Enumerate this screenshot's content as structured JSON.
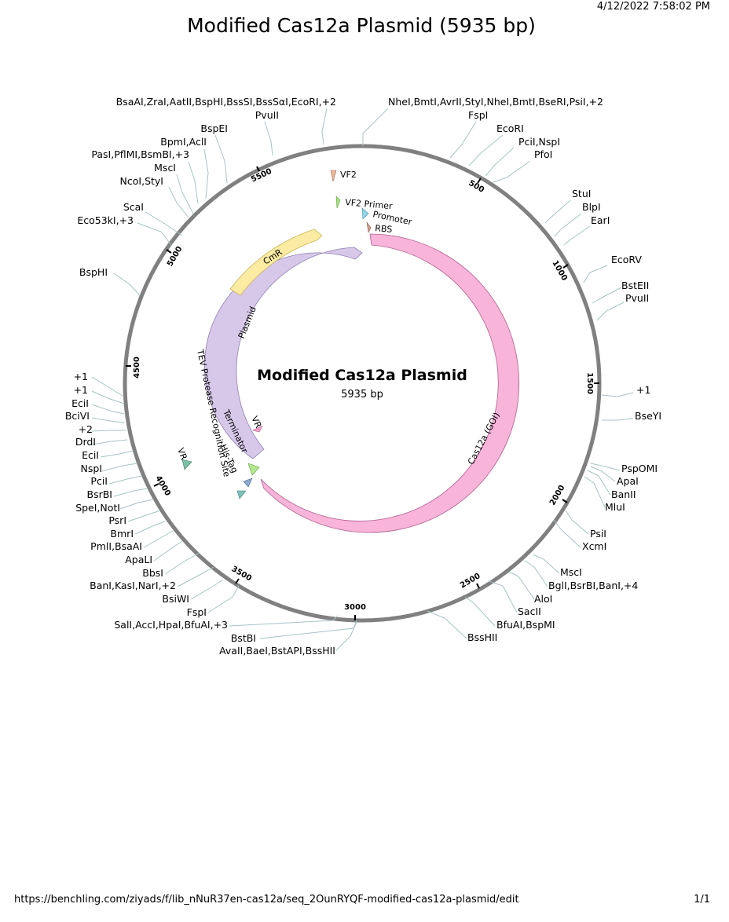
{
  "header": {
    "timestamp": "4/12/2022 7:58:02 PM",
    "title": "Modified Cas12a Plasmid (5935 bp)"
  },
  "footer": {
    "url": "https://benchling.com/ziyads/f/lib_nNuR37en-cas12a/seq_2OunRYQF-modified-cas12a-plasmid/edit",
    "page": "1/1"
  },
  "plasmid": {
    "name": "Modified Cas12a Plasmid",
    "length_label": "5935 bp",
    "length": 5935
  },
  "ticks": [
    "500",
    "1000",
    "1500",
    "2000",
    "2500",
    "3000",
    "3500",
    "4000",
    "4500",
    "5000",
    "5500"
  ],
  "features": [
    {
      "name": "Cas12a (GOI)",
      "color": "#f8b4d9",
      "stroke": "#b06090"
    },
    {
      "name": "Plasmid",
      "color": "#d7c8ea",
      "stroke": "#8f7fb0"
    },
    {
      "name": "CmR",
      "color": "#fbeba3",
      "stroke": "#c9b355"
    },
    {
      "name": "VF2",
      "color": "#e8b898"
    },
    {
      "name": "VF2 Primer",
      "color": "#a6e37e"
    },
    {
      "name": "Promoter",
      "color": "#8fd4e8"
    },
    {
      "name": "RBS",
      "color": "#d49a8c"
    },
    {
      "name": "VR",
      "color": "#f0a0c8"
    },
    {
      "name": "Terminator",
      "color": "#b4e88e"
    },
    {
      "name": "His-Tag",
      "color": "#8aa8d0"
    },
    {
      "name": "TEV Protease Recognition Site",
      "color": "#7cc0b8"
    },
    {
      "name": "VR",
      "color": "#7cc0a8"
    }
  ],
  "sites": [
    "BsaAI,ZraI,AatII,BspHI,BssSI,BssSαI,EcoRI,+2",
    "PvuII",
    "BspEI",
    "BpmI,AclI",
    "PasI,PflMI,BsmBI,+3",
    "MscI",
    "NcoI,StyI",
    "ScaI",
    "Eco53kI,+3",
    "BspHI",
    "NheI,BmtI,AvrII,StyI,NheI,BmtI,BseRI,PsiI,+2",
    "FspI",
    "EcoRI",
    "PciI,NspI",
    "PfoI",
    "StuI",
    "BlpI",
    "EarI",
    "EcoRV",
    "BstEII",
    "PvuII",
    "+1",
    "BseYI",
    "PspOMI",
    "ApaI",
    "BanII",
    "MluI",
    "PsiI",
    "XcmI",
    "MscI",
    "BglI,BsrBI,BanI,+4",
    "AloI",
    "SacII",
    "BfuAI,BspMI",
    "BssHII",
    "+1",
    "+1",
    "EciI",
    "BciVI",
    "+2",
    "DrdI",
    "EciI",
    "NspI",
    "PciI",
    "BsrBI",
    "SpeI,NotI",
    "PsrI",
    "BmrI",
    "PmlI,BsaAI",
    "ApaLI",
    "BbsI",
    "BanI,KasI,NarI,+2",
    "BsiWI",
    "FspI",
    "SalI,AccI,HpaI,BfuAI,+3",
    "BstBI",
    "AvaII,BaeI,BstAPI,BssHII"
  ]
}
